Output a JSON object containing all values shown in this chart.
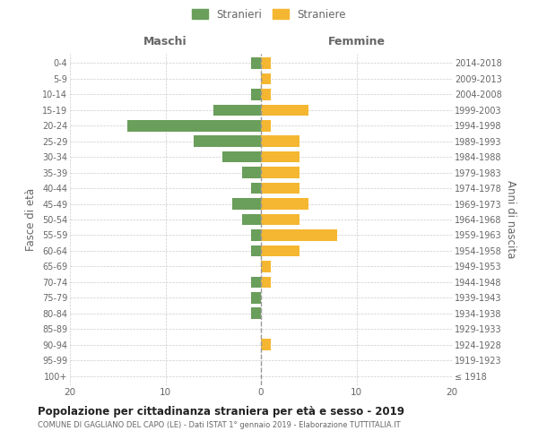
{
  "age_groups": [
    "100+",
    "95-99",
    "90-94",
    "85-89",
    "80-84",
    "75-79",
    "70-74",
    "65-69",
    "60-64",
    "55-59",
    "50-54",
    "45-49",
    "40-44",
    "35-39",
    "30-34",
    "25-29",
    "20-24",
    "15-19",
    "10-14",
    "5-9",
    "0-4"
  ],
  "birth_years": [
    "≤ 1918",
    "1919-1923",
    "1924-1928",
    "1929-1933",
    "1934-1938",
    "1939-1943",
    "1944-1948",
    "1949-1953",
    "1954-1958",
    "1959-1963",
    "1964-1968",
    "1969-1973",
    "1974-1978",
    "1979-1983",
    "1984-1988",
    "1989-1993",
    "1994-1998",
    "1999-2003",
    "2004-2008",
    "2009-2013",
    "2014-2018"
  ],
  "maschi": [
    0,
    0,
    0,
    0,
    1,
    1,
    1,
    0,
    1,
    1,
    2,
    3,
    1,
    2,
    4,
    7,
    14,
    5,
    1,
    0,
    1
  ],
  "femmine": [
    0,
    0,
    1,
    0,
    0,
    0,
    1,
    1,
    4,
    8,
    4,
    5,
    4,
    4,
    4,
    4,
    1,
    5,
    1,
    1,
    1
  ],
  "color_maschi": "#6a9e5b",
  "color_femmine": "#f5b731",
  "title": "Popolazione per cittadinanza straniera per età e sesso - 2019",
  "subtitle": "COMUNE DI GAGLIANO DEL CAPO (LE) - Dati ISTAT 1° gennaio 2019 - Elaborazione TUTTITALIA.IT",
  "legend_maschi": "Stranieri",
  "legend_femmine": "Straniere",
  "xlabel_left": "Maschi",
  "xlabel_right": "Femmine",
  "ylabel_left": "Fasce di età",
  "ylabel_right": "Anni di nascita",
  "xlim": 20,
  "background_color": "#ffffff",
  "grid_color": "#cccccc",
  "text_color": "#666666"
}
